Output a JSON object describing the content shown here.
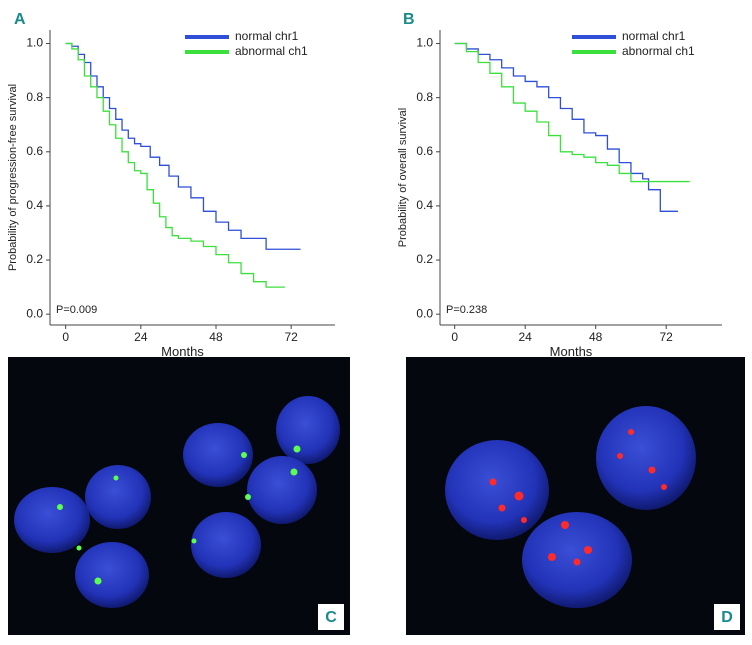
{
  "chart_data": [
    {
      "type": "step",
      "panel": "A",
      "xlabel": "Months",
      "ylabel": "Probability of progression-free survival",
      "annotation": "P=0.009",
      "legend": "upper right",
      "xlim": [
        -5,
        86
      ],
      "ylim": [
        -0.04,
        1.05
      ],
      "xticks": [
        0,
        24,
        48,
        72
      ],
      "yticks": [
        {
          "value": 0,
          "label": "0.0"
        },
        0.2,
        0.4,
        0.6,
        0.8,
        {
          "value": 1,
          "label": "1.0"
        }
      ],
      "series": [
        {
          "name": "normal chr1",
          "color": "#2f4fd8",
          "x": [
            0,
            2,
            4,
            6,
            8,
            10,
            12,
            14,
            16,
            18,
            20,
            22,
            24,
            27,
            30,
            33,
            36,
            40,
            44,
            48,
            52,
            56,
            60,
            64,
            68,
            75
          ],
          "values": [
            1.0,
            0.99,
            0.96,
            0.93,
            0.88,
            0.84,
            0.8,
            0.76,
            0.72,
            0.68,
            0.65,
            0.63,
            0.62,
            0.58,
            0.55,
            0.51,
            0.47,
            0.43,
            0.38,
            0.34,
            0.31,
            0.28,
            0.28,
            0.24,
            0.24,
            0.24
          ]
        },
        {
          "name": "abnormal ch1",
          "color": "#3ce03c",
          "x": [
            0,
            2,
            4,
            6,
            8,
            10,
            12,
            14,
            16,
            18,
            20,
            22,
            24,
            26,
            28,
            30,
            32,
            34,
            36,
            40,
            44,
            48,
            52,
            56,
            60,
            64,
            70
          ],
          "values": [
            1.0,
            0.98,
            0.94,
            0.88,
            0.84,
            0.8,
            0.75,
            0.7,
            0.65,
            0.6,
            0.56,
            0.53,
            0.52,
            0.46,
            0.41,
            0.36,
            0.32,
            0.29,
            0.28,
            0.27,
            0.25,
            0.22,
            0.19,
            0.15,
            0.12,
            0.1,
            0.1
          ]
        }
      ]
    },
    {
      "type": "step",
      "panel": "B",
      "xlabel": "Months",
      "ylabel": "Probability of overall survival",
      "annotation": "P=0.238",
      "legend": "upper right",
      "xlim": [
        -5,
        91
      ],
      "ylim": [
        -0.04,
        1.05
      ],
      "xticks": [
        0,
        24,
        48,
        72
      ],
      "yticks": [
        {
          "value": 0,
          "label": "0.0"
        },
        0.2,
        0.4,
        0.6,
        0.8,
        {
          "value": 1,
          "label": "1.0"
        }
      ],
      "series": [
        {
          "name": "normal chr1",
          "color": "#2f4fd8",
          "x": [
            0,
            4,
            8,
            12,
            16,
            20,
            24,
            28,
            32,
            36,
            40,
            44,
            48,
            52,
            56,
            60,
            64,
            66,
            68,
            70,
            76
          ],
          "values": [
            1.0,
            0.98,
            0.96,
            0.94,
            0.91,
            0.88,
            0.86,
            0.84,
            0.8,
            0.76,
            0.72,
            0.67,
            0.66,
            0.61,
            0.56,
            0.52,
            0.5,
            0.46,
            0.46,
            0.38,
            0.38
          ]
        },
        {
          "name": "abnormal ch1",
          "color": "#3ce03c",
          "x": [
            0,
            4,
            8,
            12,
            16,
            20,
            24,
            28,
            32,
            36,
            40,
            44,
            48,
            52,
            56,
            60,
            70,
            80
          ],
          "values": [
            1.0,
            0.97,
            0.93,
            0.89,
            0.84,
            0.78,
            0.75,
            0.71,
            0.66,
            0.6,
            0.59,
            0.58,
            0.56,
            0.55,
            0.52,
            0.49,
            0.49,
            0.49
          ]
        }
      ]
    }
  ],
  "images": [
    {
      "label": "C"
    },
    {
      "label": "D"
    }
  ]
}
